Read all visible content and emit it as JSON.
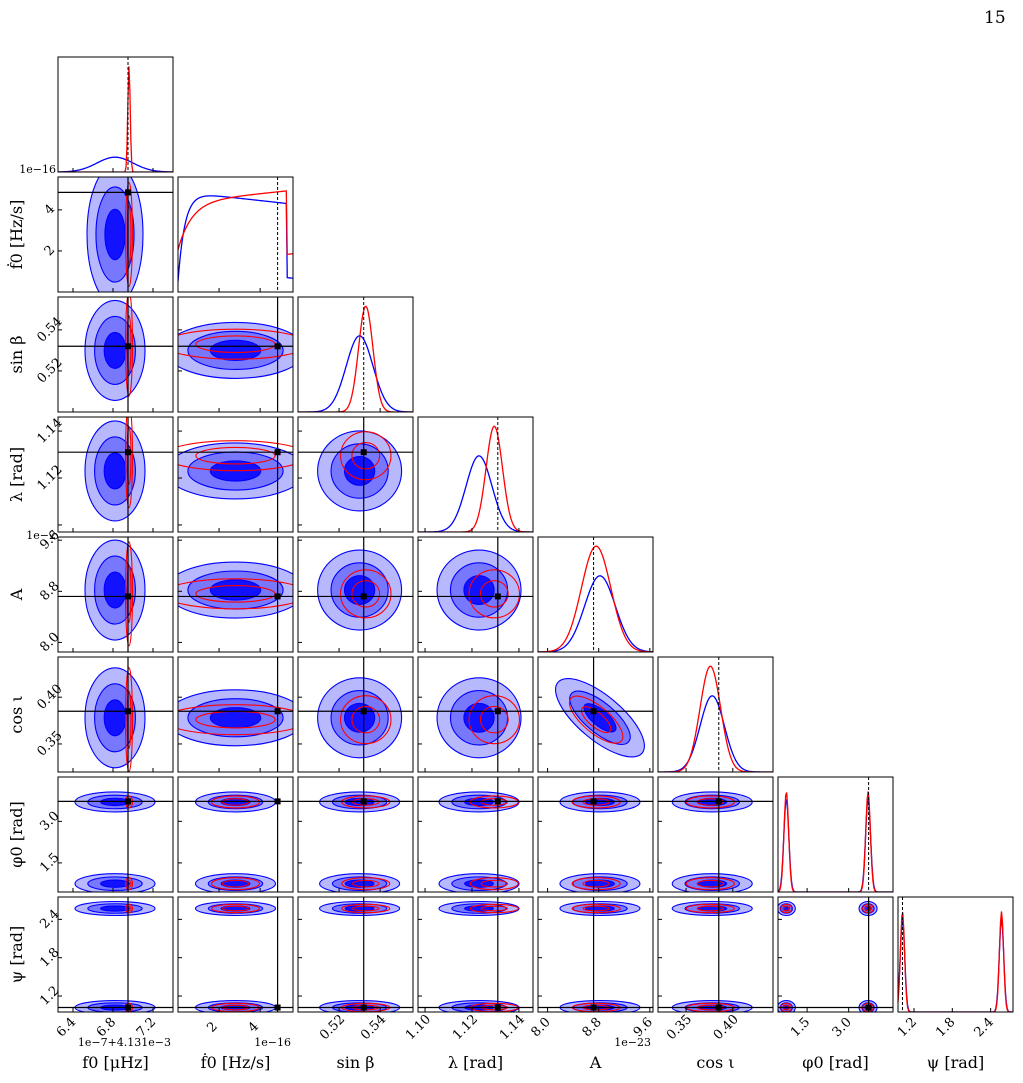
{
  "page": {
    "number": "15"
  },
  "chart_data": {
    "type": "corner",
    "colors": {
      "blue": "#0000ff",
      "red": "#ff0000",
      "truth": "#000000"
    },
    "parameters": [
      {
        "key": "f0",
        "label": "f0 [μHz]",
        "range": [
          6.25,
          7.4
        ],
        "ticks": [
          6.4,
          6.8,
          7.2
        ],
        "tick_labels": [
          "6.4",
          "6.8",
          "7.2"
        ],
        "truth": 6.95,
        "offset": "1e−7+4.131e−3",
        "blue_mean": 6.82,
        "blue_sd": 0.18,
        "red_mean": 6.96,
        "red_sd": 0.012
      },
      {
        "key": "f0dot",
        "label": "ḟ0 [Hz/s]",
        "range": [
          0,
          5.6
        ],
        "ticks": [
          2,
          4
        ],
        "tick_labels": [
          "2",
          "4"
        ],
        "truth": 4.85,
        "offset": "1e−16",
        "top_offset": "1e−16"
      },
      {
        "key": "sinb",
        "label": "sin β",
        "range": [
          0.5,
          0.556
        ],
        "ticks": [
          0.52,
          0.54
        ],
        "tick_labels": [
          "0.52",
          "0.54"
        ],
        "truth": 0.532,
        "blue_mean": 0.53,
        "blue_sd": 0.0065,
        "red_mean": 0.533,
        "red_sd": 0.0035
      },
      {
        "key": "lam",
        "label": "λ [rad]",
        "range": [
          1.097,
          1.146
        ],
        "ticks": [
          1.1,
          1.12,
          1.14
        ],
        "tick_labels": [
          "1.10",
          "1.12",
          "1.14"
        ],
        "truth": 1.131,
        "blue_mean": 1.123,
        "blue_sd": 0.0055,
        "red_mean": 1.1295,
        "red_sd": 0.0035
      },
      {
        "key": "A",
        "label": "A",
        "range": [
          7.85,
          9.65
        ],
        "ticks": [
          8.0,
          8.8,
          9.6
        ],
        "tick_labels": [
          "8.0",
          "8.8",
          "9.6"
        ],
        "truth": 8.72,
        "offset": "1e−23",
        "left_offset": "1e−2",
        "blue_mean": 8.82,
        "blue_sd": 0.24,
        "red_mean": 8.76,
        "red_sd": 0.23
      },
      {
        "key": "cosi",
        "label": "cos ι",
        "range": [
          0.32,
          0.443
        ],
        "ticks": [
          0.35,
          0.4
        ],
        "tick_labels": [
          "0.35",
          "0.40"
        ],
        "truth": 0.385,
        "blue_mean": 0.378,
        "blue_sd": 0.013,
        "red_mean": 0.376,
        "red_sd": 0.011
      },
      {
        "key": "phi0",
        "label": "φ0 [rad]",
        "range": [
          0.45,
          4.6
        ],
        "ticks": [
          1.5,
          3.0
        ],
        "tick_labels": [
          "1.5",
          "3.0"
        ],
        "truth": 3.72,
        "modes": [
          0.75,
          3.7
        ],
        "mode_sd": 0.09
      },
      {
        "key": "psi",
        "label": "ψ [rad]",
        "range": [
          0.95,
          2.75
        ],
        "ticks": [
          1.2,
          1.8,
          2.4
        ],
        "tick_labels": [
          "1.2",
          "1.8",
          "2.4"
        ],
        "truth": 1.02,
        "modes": [
          1.02,
          2.57
        ],
        "mode_sd": 0.035
      }
    ],
    "y_tick_labels": {
      "f0dot": [
        "2",
        "4"
      ],
      "sinb": [
        "0.52",
        "0.54"
      ],
      "lam": [
        "1.12",
        "1.14"
      ],
      "A": [
        "8.0",
        "8.8",
        "9.6"
      ],
      "cosi": [
        "0.35",
        "0.40"
      ],
      "phi0": [
        "1.5",
        "3.0"
      ],
      "psi": [
        "1.2",
        "1.8",
        "2.4"
      ]
    },
    "grid": false,
    "legend": "none"
  }
}
